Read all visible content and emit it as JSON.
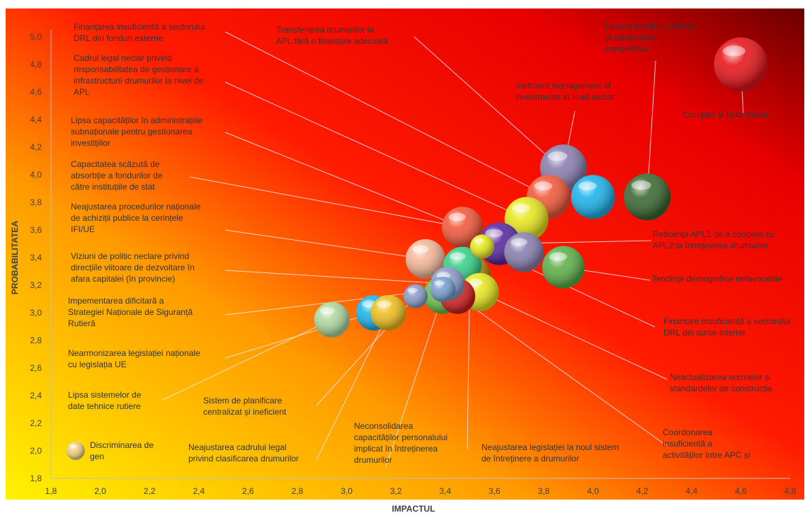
{
  "chart_data": {
    "type": "scatter",
    "xlabel": "IMPACTUL",
    "ylabel": "PROBABILITATEA",
    "xlim": [
      1.8,
      4.8
    ],
    "ylim": [
      1.8,
      5.0
    ],
    "xticks": [
      "1,8",
      "2,0",
      "2,2",
      "2,4",
      "2,6",
      "2,8",
      "3,0",
      "3,2",
      "3,4",
      "3,6",
      "3,8",
      "4,0",
      "4,2",
      "4,4",
      "4,6",
      "4,8"
    ],
    "yticks": [
      "1,8",
      "2,0",
      "2,2",
      "2,4",
      "2,6",
      "2,8",
      "3,0",
      "3,2",
      "3,4",
      "3,6",
      "3,8",
      "4,0",
      "4,2",
      "4,4",
      "4,6",
      "4,8",
      "5,0"
    ],
    "grid": false,
    "background": "gradient yellow (bottom-left) to dark red (top-right)",
    "points": [
      {
        "x": 4.6,
        "y": 4.8,
        "size": 38,
        "color": "#e8161b",
        "label": [
          "Corupția și favoritismul"
        ]
      },
      {
        "x": 3.88,
        "y": 4.05,
        "size": 33,
        "color": "#8a80b0",
        "label": [
          "Ineficient management of",
          "investments in road sector"
        ]
      },
      {
        "x": 4.22,
        "y": 3.84,
        "size": 33,
        "color": "#3d6a35",
        "label": [
          "Lipsa experților calificați",
          "și companiilor",
          "competitive"
        ]
      },
      {
        "x": 4.0,
        "y": 3.84,
        "size": 31,
        "color": "#1fb4ea",
        "label": [
          "Transferarea drumurilor la",
          "APL fără o finanțare adecvată"
        ]
      },
      {
        "x": 3.82,
        "y": 3.84,
        "size": 31,
        "color": "#f25a3c",
        "label": [
          "Finanțarea insuficientă a sectorului",
          "DRL din fonduri externe"
        ]
      },
      {
        "x": 3.73,
        "y": 3.68,
        "size": 31,
        "color": "#e8e820",
        "label": [
          "Cadrul legal neclar privind",
          "responsabilitatea de gestionare a",
          "infrastructurii drumurilor la nivel de",
          "APL"
        ]
      },
      {
        "x": 3.72,
        "y": 3.44,
        "size": 28,
        "color": "#8a80b0",
        "label": [
          "Lipsa capacităților în administrațiile",
          "subnaționale pentru gestionarea",
          "investițiilor"
        ]
      },
      {
        "x": 3.62,
        "y": 3.5,
        "size": 30,
        "color": "#5a2aa0",
        "label": [
          "Reticența APL1 de a coopera cu",
          "APL2 la întreținerea drumurilor"
        ]
      },
      {
        "x": 3.88,
        "y": 3.33,
        "size": 30,
        "color": "#5fb04a",
        "label": [
          "Tendințe demografice nefavorabile"
        ]
      },
      {
        "x": 3.47,
        "y": 3.62,
        "size": 29,
        "color": "#f25a3c",
        "label": [
          "Capacitatea scăzută de",
          "absorbție a fondurilor de",
          "către instituțiile de stat"
        ]
      },
      {
        "x": 3.32,
        "y": 3.39,
        "size": 28,
        "color": "#f4b89a",
        "label": [
          "Neajustarea procedurilor naționale",
          "de achiziții publice la cerințele",
          "IFI/UE"
        ]
      },
      {
        "x": 3.47,
        "y": 3.34,
        "size": 27,
        "color": "#3ad08a",
        "label": []
      },
      {
        "x": 3.54,
        "y": 3.15,
        "size": 27,
        "color": "#e8e820",
        "label": [
          "Neactualizarea normelor și",
          "standardelor de construcție"
        ]
      },
      {
        "x": 3.45,
        "y": 3.12,
        "size": 25,
        "color": "#d42020",
        "label": [
          "Coordonarea",
          "insuficientă a",
          "activităților între APC și"
        ]
      },
      {
        "x": 3.41,
        "y": 3.21,
        "size": 24,
        "color": "#8a9cc8",
        "label": [
          "Viziuni de politic neclare privind",
          "direcțiile viitoare de dezvoltare în",
          "afara capitalei (în provincie)"
        ]
      },
      {
        "x": 3.5,
        "y": 3.27,
        "size": 29,
        "color": "#b8860b",
        "label": [
          "Neajustarea legislației la noul sistem",
          "de întreținere a drumurilor"
        ]
      },
      {
        "x": 3.39,
        "y": 3.13,
        "size": 27,
        "color": "#6cc04a",
        "label": [
          "Neconsolidarea",
          "capacităților personalului",
          "implicat în întreținerea",
          "drumurilor"
        ]
      },
      {
        "x": 2.94,
        "y": 2.95,
        "size": 25,
        "color": "#b0d8a0",
        "label": [
          "Lipsa sistemelor de",
          "date tehnice rutiere"
        ]
      },
      {
        "x": 3.11,
        "y": 3.0,
        "size": 25,
        "color": "#1fb4ea",
        "label": [
          "Nearmonizarea legislației naționale",
          "cu legislația UE"
        ]
      },
      {
        "x": 3.17,
        "y": 3.0,
        "size": 25,
        "color": "#f0c020",
        "label": [
          "Neajustarea cadrului legal",
          "privind clasificarea drumurilor"
        ]
      },
      {
        "x": 3.39,
        "y": 3.17,
        "size": 18,
        "color": "#7aa0d0",
        "label": [
          "Impementarea dificitară a",
          "Strategiei Naționale de Siguranță",
          "Rutieră"
        ]
      },
      {
        "x": 3.28,
        "y": 3.12,
        "size": 17,
        "color": "#8a9cc8",
        "label": [
          "Sistem de planificare",
          "centralizat și ineficient"
        ]
      },
      {
        "x": 3.55,
        "y": 3.48,
        "size": 17,
        "color": "#e8e820",
        "label": [
          "Finanțare insuficientă a sectorului",
          "DRL din surse  interne"
        ]
      },
      {
        "x": 1.9,
        "y": 2.0,
        "size": 13,
        "color": "#f0d080",
        "label": [
          "Discriminarea de",
          "gen"
        ]
      }
    ]
  }
}
